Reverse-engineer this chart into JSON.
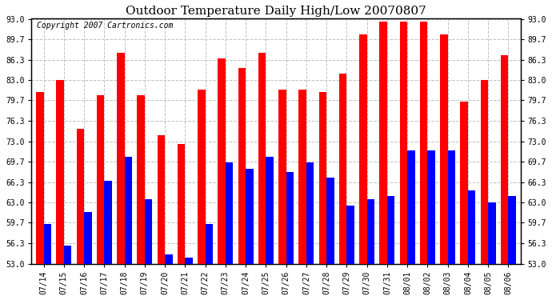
{
  "title": "Outdoor Temperature Daily High/Low 20070807",
  "copyright": "Copyright 2007 Cartronics.com",
  "dates": [
    "07/14",
    "07/15",
    "07/16",
    "07/17",
    "07/18",
    "07/19",
    "07/20",
    "07/21",
    "07/22",
    "07/23",
    "07/24",
    "07/25",
    "07/26",
    "07/27",
    "07/28",
    "07/29",
    "07/30",
    "07/31",
    "08/01",
    "08/02",
    "08/03",
    "08/04",
    "08/05",
    "08/06"
  ],
  "highs": [
    81.0,
    83.0,
    75.0,
    80.5,
    87.5,
    80.5,
    74.0,
    72.5,
    81.5,
    86.5,
    85.0,
    87.5,
    81.5,
    81.5,
    81.0,
    84.0,
    90.5,
    92.5,
    92.5,
    92.5,
    90.5,
    79.5,
    83.0,
    87.0
  ],
  "lows": [
    59.5,
    56.0,
    61.5,
    66.5,
    70.5,
    63.5,
    54.5,
    54.0,
    59.5,
    69.5,
    68.5,
    70.5,
    68.0,
    69.5,
    67.0,
    62.5,
    63.5,
    64.0,
    71.5,
    71.5,
    71.5,
    65.0,
    63.0,
    64.0
  ],
  "high_color": "#ff0000",
  "low_color": "#0000ff",
  "background_color": "#ffffff",
  "grid_color": "#c0c0c0",
  "ylim_min": 53.0,
  "ylim_max": 93.0,
  "yticks": [
    53.0,
    56.3,
    59.7,
    63.0,
    66.3,
    69.7,
    73.0,
    76.3,
    79.7,
    83.0,
    86.3,
    89.7,
    93.0
  ],
  "bar_width": 0.38,
  "title_fontsize": 11,
  "copyright_fontsize": 7,
  "tick_fontsize": 7,
  "border_color": "#000000"
}
